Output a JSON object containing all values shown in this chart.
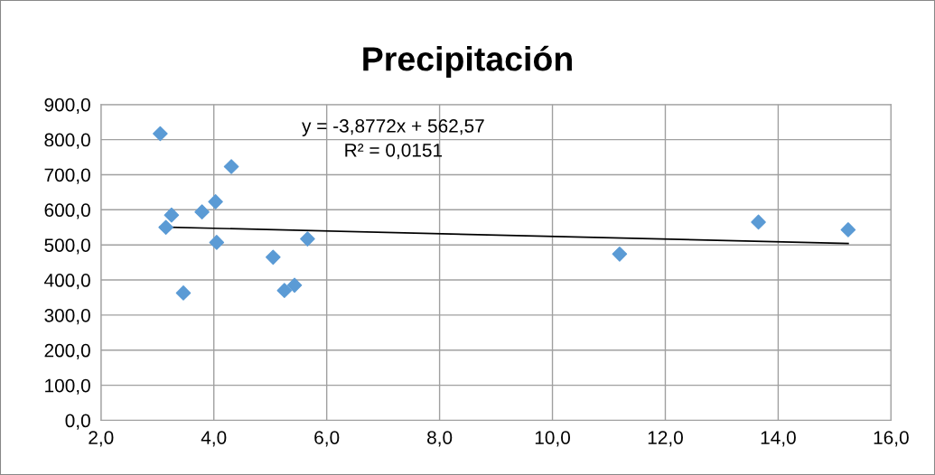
{
  "chart_data": {
    "type": "scatter",
    "title": "Precipitación",
    "xlim": [
      2,
      16
    ],
    "ylim": [
      0,
      900
    ],
    "xticks": [
      {
        "value": 2,
        "label": "2,0"
      },
      {
        "value": 4,
        "label": "4,0"
      },
      {
        "value": 6,
        "label": "6,0"
      },
      {
        "value": 8,
        "label": "8,0"
      },
      {
        "value": 10,
        "label": "10,0"
      },
      {
        "value": 12,
        "label": "12,0"
      },
      {
        "value": 14,
        "label": "14,0"
      },
      {
        "value": 16,
        "label": "16,0"
      }
    ],
    "yticks": [
      {
        "value": 0,
        "label": "0,0"
      },
      {
        "value": 100,
        "label": "100,0"
      },
      {
        "value": 200,
        "label": "200,0"
      },
      {
        "value": 300,
        "label": "300,0"
      },
      {
        "value": 400,
        "label": "400,0"
      },
      {
        "value": 500,
        "label": "500,0"
      },
      {
        "value": 600,
        "label": "600,0"
      },
      {
        "value": 700,
        "label": "700,0"
      },
      {
        "value": 800,
        "label": "800,0"
      },
      {
        "value": 900,
        "label": "900,0"
      }
    ],
    "grid": true,
    "marker": "diamond",
    "series": [
      {
        "color": "#5b9bd5",
        "x": [
          3.05,
          3.25,
          3.15,
          3.46,
          3.79,
          4.03,
          4.05,
          4.31,
          5.05,
          5.25,
          5.43,
          5.66,
          11.19,
          13.65,
          15.24
        ],
        "values": [
          817,
          585,
          550,
          363,
          594,
          623,
          507,
          723,
          465,
          370,
          385,
          517,
          474,
          565,
          543
        ]
      },
      {
        "type": "line",
        "color": "#000000",
        "marker": "none",
        "x": [
          3.05,
          15.24
        ],
        "values": [
          551,
          504
        ]
      }
    ],
    "annotations": [
      "y = -3,8772x + 562,57\nR² = 0,0151"
    ]
  }
}
